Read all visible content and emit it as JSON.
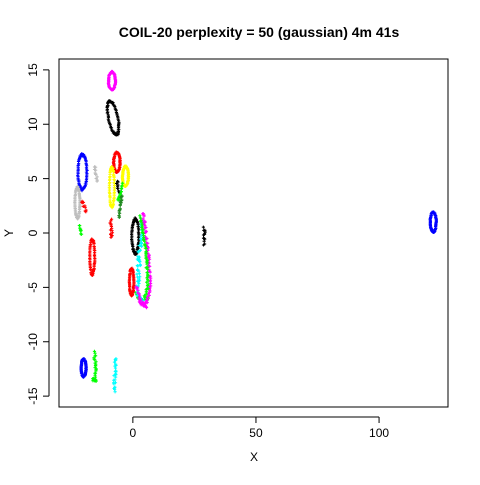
{
  "chart_data": {
    "type": "scatter",
    "title": "COIL-20 perplexity = 50 (gaussian) 4m 41s",
    "xlabel": "X",
    "ylabel": "Y",
    "xlim": [
      -30,
      128
    ],
    "ylim": [
      -16,
      16
    ],
    "xticks": [
      0,
      50,
      100
    ],
    "yticks": [
      -15,
      -10,
      -5,
      0,
      5,
      10,
      15
    ],
    "grid": false,
    "legend": "none",
    "clusters": [
      {
        "color": "#0000ff",
        "shape": "loop",
        "cx": -20.5,
        "cy": 5.6,
        "rx": 1.8,
        "ry": 1.6,
        "tilt": 0.0
      },
      {
        "color": "#0000ff",
        "shape": "loop",
        "cx": -20.0,
        "cy": -12.4,
        "rx": 1.0,
        "ry": 0.8,
        "tilt": 0.0
      },
      {
        "color": "#0000ff",
        "shape": "loop",
        "cx": 122.0,
        "cy": 1.0,
        "rx": 1.2,
        "ry": 0.9,
        "tilt": 0.0
      },
      {
        "color": "#ff00ff",
        "shape": "loop",
        "cx": -8.5,
        "cy": 14.0,
        "rx": 1.4,
        "ry": 0.8,
        "tilt": 0.0
      },
      {
        "color": "#ff0000",
        "shape": "loop",
        "cx": -6.5,
        "cy": 6.5,
        "rx": 1.3,
        "ry": 0.9,
        "tilt": 0.0
      },
      {
        "color": "#ffff00",
        "shape": "loop",
        "cx": -3.0,
        "cy": 5.2,
        "rx": 1.2,
        "ry": 0.9,
        "tilt": 0.0
      },
      {
        "color": "#ffff00",
        "shape": "loop",
        "cx": -8.5,
        "cy": 4.2,
        "rx": 1.0,
        "ry": 1.8,
        "tilt": 0.0
      },
      {
        "color": "#000000",
        "shape": "loop",
        "cx": -8.0,
        "cy": 10.6,
        "rx": 2.5,
        "ry": 1.2,
        "tilt": -0.45
      },
      {
        "color": "#000000",
        "shape": "loop",
        "cx": 1.0,
        "cy": -0.3,
        "rx": 1.4,
        "ry": 1.6,
        "tilt": 0.0
      },
      {
        "color": "#000000",
        "shape": "strip",
        "pts": [
          [
            29,
            0.5
          ],
          [
            29,
            -1.0
          ]
        ],
        "w": 0.9
      },
      {
        "color": "#000000",
        "shape": "strip",
        "pts": [
          [
            -6.5,
            4.8
          ],
          [
            -5.5,
            3.6
          ]
        ],
        "w": 0.8
      },
      {
        "color": "#bebebe",
        "shape": "loop",
        "cx": -22.5,
        "cy": 2.8,
        "rx": 1.0,
        "ry": 1.4,
        "tilt": 0.0
      },
      {
        "color": "#bebebe",
        "shape": "strip",
        "pts": [
          [
            -15.5,
            6.2
          ],
          [
            -14.5,
            4.8
          ]
        ],
        "w": 0.7
      },
      {
        "color": "#ff0000",
        "shape": "strip",
        "pts": [
          [
            -20.5,
            3.0
          ],
          [
            -19.0,
            2.0
          ]
        ],
        "w": 0.8
      },
      {
        "color": "#ff0000",
        "shape": "loop",
        "cx": -16.5,
        "cy": -2.2,
        "rx": 1.0,
        "ry": 1.6,
        "tilt": 0.0
      },
      {
        "color": "#ff0000",
        "shape": "strip",
        "pts": [
          [
            -9.0,
            1.2
          ],
          [
            -8.5,
            -0.5
          ]
        ],
        "w": 0.8
      },
      {
        "color": "#ff0000",
        "shape": "loop",
        "cx": -0.5,
        "cy": -4.5,
        "rx": 0.9,
        "ry": 1.2,
        "tilt": 0.0
      },
      {
        "color": "#00ff00",
        "shape": "strip",
        "pts": [
          [
            -4.5,
            4.5
          ],
          [
            -5.0,
            3.5
          ],
          [
            -6.0,
            3.0
          ]
        ],
        "w": 0.6
      },
      {
        "color": "#00ff00",
        "shape": "strip",
        "pts": [
          [
            -21.5,
            0.7
          ],
          [
            -21.0,
            -0.1
          ]
        ],
        "w": 0.5
      },
      {
        "color": "#00ff00",
        "shape": "strip",
        "pts": [
          [
            -15.5,
            -11.0
          ],
          [
            -15.0,
            -13.5
          ],
          [
            -16.5,
            -13.5
          ]
        ],
        "w": 0.8
      },
      {
        "color": "#00ff00",
        "shape": "strip",
        "pts": [
          [
            1.0,
            -5.5
          ],
          [
            3.0,
            -6.2
          ],
          [
            6.5,
            -6.0
          ]
        ],
        "w": 0.8
      },
      {
        "color": "#228b22",
        "shape": "strip",
        "pts": [
          [
            -5.5,
            1.4
          ],
          [
            -5.0,
            2.8
          ],
          [
            -4.5,
            3.4
          ]
        ],
        "w": 0.6
      },
      {
        "color": "#00ffff",
        "shape": "strip",
        "pts": [
          [
            -7.0,
            -11.5
          ],
          [
            -7.5,
            -14.5
          ]
        ],
        "w": 0.9
      },
      {
        "color": "#00ffff",
        "shape": "strip",
        "pts": [
          [
            4.0,
            1.0
          ],
          [
            2.5,
            -2.5
          ],
          [
            2.0,
            -5.5
          ],
          [
            4.0,
            -6.5
          ]
        ],
        "w": 1.3
      },
      {
        "color": "#ff00ff",
        "shape": "strip",
        "pts": [
          [
            4.0,
            1.8
          ],
          [
            6.5,
            -2.0
          ],
          [
            7.0,
            -5.0
          ],
          [
            5.5,
            -6.5
          ],
          [
            2.5,
            -6.4
          ]
        ],
        "w": 0.8
      },
      {
        "color": "#ff00ff",
        "shape": "strip",
        "pts": [
          [
            1.5,
            -5.0
          ],
          [
            3.5,
            -6.5
          ],
          [
            5.5,
            -6.8
          ]
        ],
        "w": 0.6
      },
      {
        "color": "#00ff00",
        "shape": "strip",
        "pts": [
          [
            3.0,
            1.5
          ],
          [
            5.5,
            -2.0
          ],
          [
            6.0,
            -5.0
          ],
          [
            4.5,
            -6.0
          ]
        ],
        "w": 0.7
      }
    ]
  }
}
